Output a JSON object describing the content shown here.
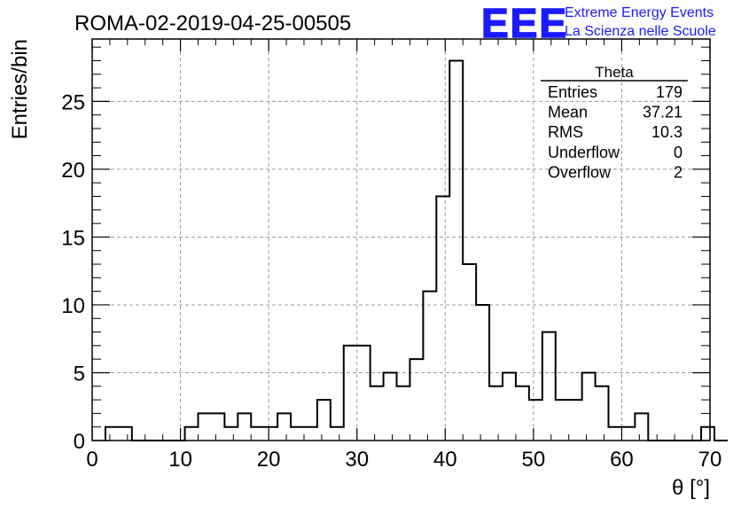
{
  "chart_data": {
    "type": "bar",
    "title": "ROMA-02-2019-04-25-00505",
    "xlabel": "θ [°]",
    "ylabel": "Entries/bin",
    "xlim": [
      0,
      70
    ],
    "ylim": [
      0,
      29.6
    ],
    "x_ticks": [
      "0",
      "10",
      "20",
      "30",
      "40",
      "50",
      "60",
      "70"
    ],
    "y_ticks": [
      "0",
      "5",
      "10",
      "15",
      "20",
      "25"
    ],
    "grid": true,
    "bin_edges_start": 1.5,
    "bin_width": 1.5,
    "values": [
      1,
      1,
      0,
      0,
      0,
      0,
      1,
      2,
      2,
      1,
      2,
      1,
      1,
      2,
      1,
      1,
      3,
      1,
      7,
      7,
      4,
      5,
      4,
      6,
      11,
      18,
      28,
      13,
      10,
      4,
      5,
      4,
      3,
      8,
      3,
      3,
      5,
      4,
      1,
      1,
      2,
      0,
      0,
      0,
      0,
      1,
      0
    ],
    "stats_box": {
      "title": "Theta",
      "rows": [
        {
          "label": "Entries",
          "value": "179"
        },
        {
          "label": "Mean",
          "value": "37.21"
        },
        {
          "label": "RMS",
          "value": "10.3"
        },
        {
          "label": "Underflow",
          "value": "0"
        },
        {
          "label": "Overflow",
          "value": "2"
        }
      ]
    }
  },
  "logo": {
    "text": "EEE",
    "line1": "Extreme Energy Events",
    "line2": "La Scienza nelle Scuole",
    "color": "#1a1aff"
  }
}
